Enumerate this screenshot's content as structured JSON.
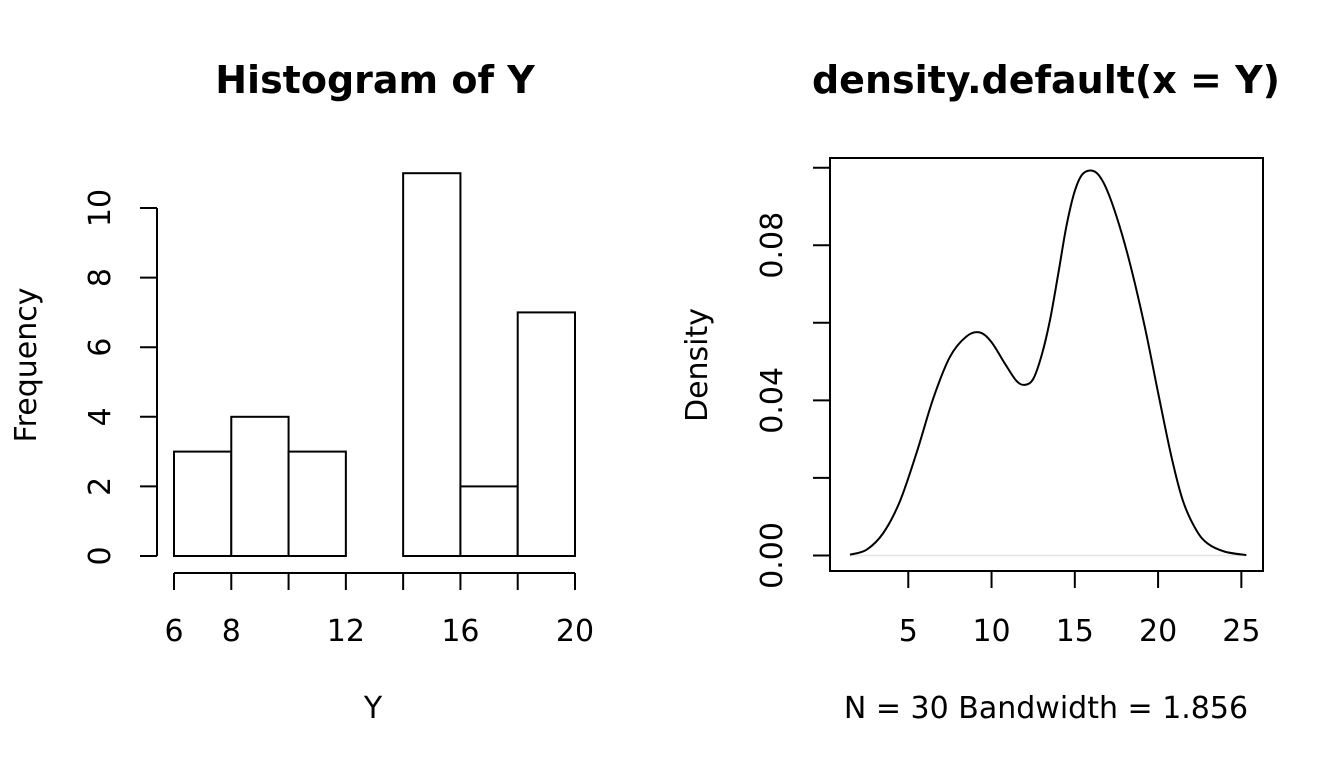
{
  "chart_data": [
    {
      "type": "bar",
      "title": "Histogram of Y",
      "xlabel": "Y",
      "ylabel": "Frequency",
      "bins": [
        [
          6,
          8
        ],
        [
          8,
          10
        ],
        [
          10,
          12
        ],
        [
          12,
          14
        ],
        [
          14,
          16
        ],
        [
          16,
          18
        ],
        [
          18,
          20
        ]
      ],
      "values": [
        3,
        4,
        3,
        0,
        11,
        2,
        7
      ],
      "x_ticks": [
        6,
        8,
        10,
        12,
        14,
        16,
        18,
        20
      ],
      "x_tick_labels": [
        "6",
        "8",
        "",
        "12",
        "",
        "16",
        "",
        "20"
      ],
      "y_ticks": [
        0,
        2,
        4,
        6,
        8,
        10
      ],
      "y_tick_labels": [
        "0",
        "2",
        "4",
        "6",
        "8",
        "10"
      ],
      "xlim": [
        6,
        20
      ],
      "ylim": [
        0,
        11
      ],
      "grid": false
    },
    {
      "type": "line",
      "title": "density.default(x = Y)",
      "xlabel": "N = 30   Bandwidth = 1.856",
      "ylabel": "Density",
      "x": [
        1.5,
        2.5,
        3.5,
        4.5,
        5.5,
        6.5,
        7.5,
        8.5,
        9.3,
        10.0,
        10.8,
        11.5,
        12.0,
        12.5,
        13.0,
        13.5,
        14.0,
        14.5,
        15.0,
        15.5,
        16.2,
        16.8,
        17.5,
        18.3,
        19.2,
        20.0,
        20.8,
        21.5,
        22.3,
        23.0,
        24.0,
        25.3
      ],
      "y": [
        0.0002,
        0.0015,
        0.0058,
        0.014,
        0.0265,
        0.0405,
        0.0512,
        0.0565,
        0.0575,
        0.055,
        0.0495,
        0.045,
        0.044,
        0.0455,
        0.0515,
        0.0605,
        0.0725,
        0.085,
        0.094,
        0.0985,
        0.099,
        0.0955,
        0.0875,
        0.0755,
        0.059,
        0.042,
        0.0255,
        0.014,
        0.0065,
        0.003,
        0.001,
        0.0001
      ],
      "x_ticks": [
        5,
        10,
        15,
        20,
        25
      ],
      "x_tick_labels": [
        "5",
        "10",
        "15",
        "20",
        "25"
      ],
      "y_ticks": [
        0,
        0.02,
        0.04,
        0.06,
        0.08,
        0.1
      ],
      "y_tick_labels": [
        "0.00",
        "",
        "0.04",
        "",
        "0.08",
        ""
      ],
      "xlim": [
        0.3,
        26.3
      ],
      "ylim": [
        -0.004,
        0.1025
      ],
      "grid": false
    }
  ]
}
